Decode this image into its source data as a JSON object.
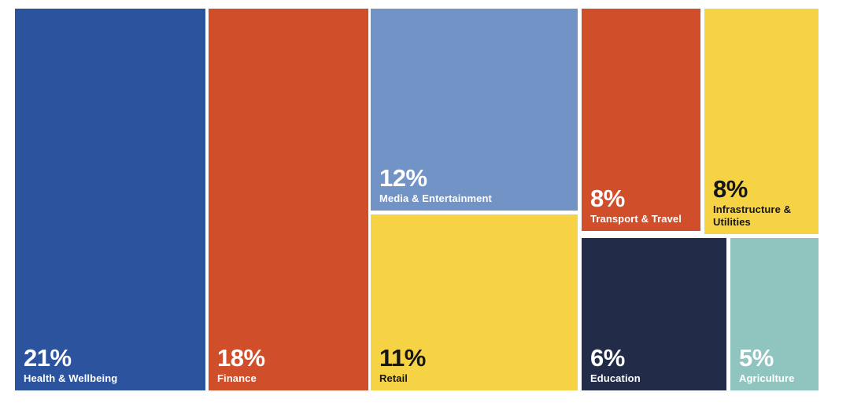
{
  "chart_data": {
    "type": "treemap",
    "title": "",
    "unit": "%",
    "background": "#FFFFFF",
    "tiles": [
      {
        "label": "Health & Wellbeing",
        "value": 21,
        "percent_label": "21%",
        "color": "#2B539E",
        "text_color": "#FFFFFF"
      },
      {
        "label": "Finance",
        "value": 18,
        "percent_label": "18%",
        "color": "#D14E2B",
        "text_color": "#FFFFFF"
      },
      {
        "label": "Media & Entertainment",
        "value": 12,
        "percent_label": "12%",
        "color": "#7193C5",
        "text_color": "#FFFFFF"
      },
      {
        "label": "Retail",
        "value": 11,
        "percent_label": "11%",
        "color": "#F6D245",
        "text_color": "#161616"
      },
      {
        "label": "Transport & Travel",
        "value": 8,
        "percent_label": "8%",
        "color": "#D14E2B",
        "text_color": "#FFFFFF"
      },
      {
        "label": "Infrastructure & Utilities",
        "value": 8,
        "percent_label": "8%",
        "color": "#F6D245",
        "text_color": "#161616"
      },
      {
        "label": "Education",
        "value": 6,
        "percent_label": "6%",
        "color": "#222C49",
        "text_color": "#FFFFFF"
      },
      {
        "label": "Agriculture",
        "value": 5,
        "percent_label": "5%",
        "color": "#90C4BE",
        "text_color": "#FFFFFF"
      }
    ]
  }
}
